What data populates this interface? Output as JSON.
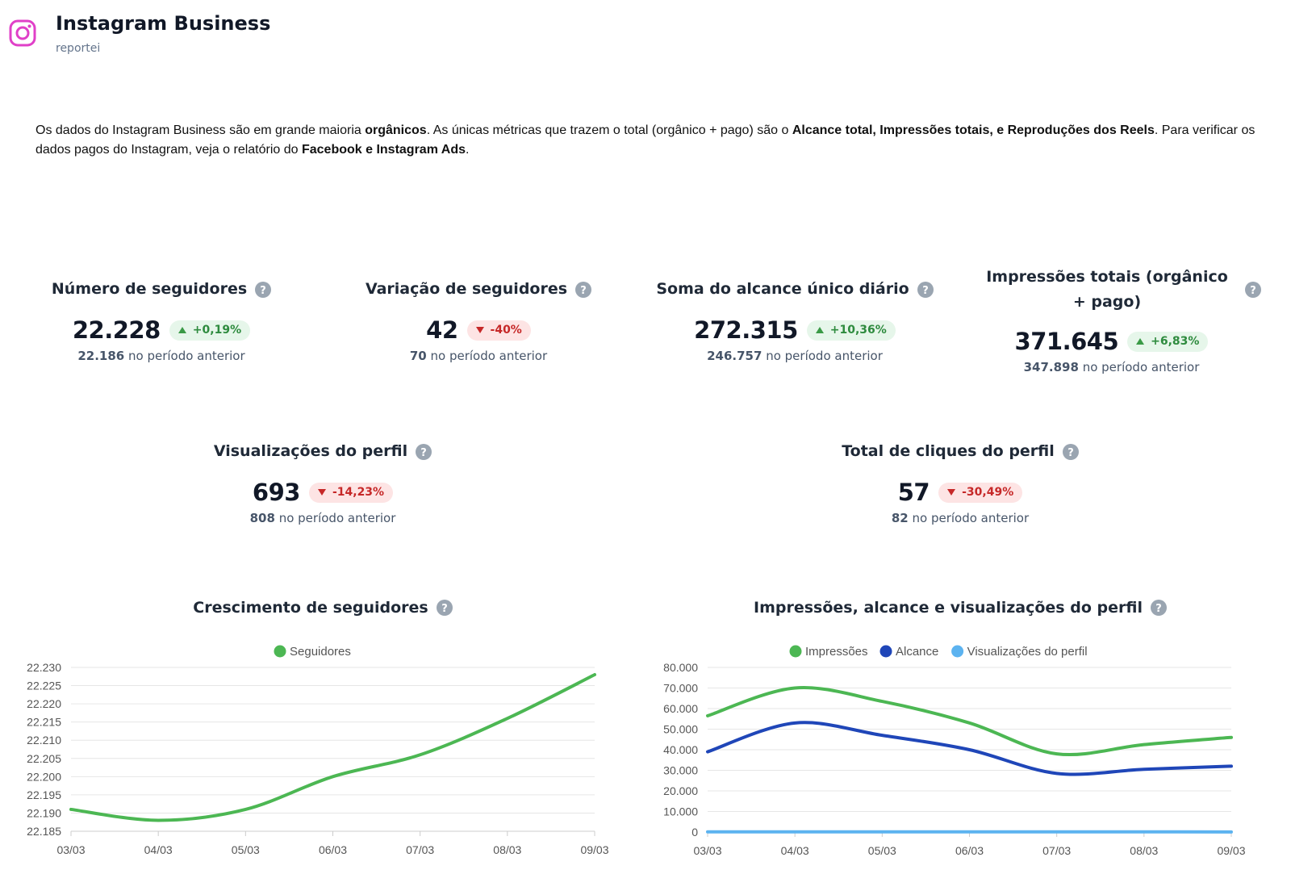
{
  "header": {
    "title": "Instagram Business",
    "subtitle": "reportei",
    "icon": "instagram-icon",
    "icon_color": "#e040c8"
  },
  "intro": {
    "p1": "Os dados do Instagram Business são em grande maioria ",
    "b1": "orgânicos",
    "p2": ". As únicas métricas que trazem o total (orgânico + pago) são o ",
    "b2": "Alcance total, Impressões totais, e Reproduções dos Reels",
    "p3": ". Para verificar os dados pagos do Instagram, veja o relatório do ",
    "b3": "Facebook e Instagram Ads",
    "p4": "."
  },
  "prev_suffix": " no período anterior",
  "metrics": [
    {
      "title": "Número de seguidores",
      "value": "22.228",
      "change": "+0,19%",
      "direction": "up",
      "previous": "22.186"
    },
    {
      "title": "Variação de seguidores",
      "value": "42",
      "change": "-40%",
      "direction": "down",
      "previous": "70"
    },
    {
      "title": "Soma do alcance único diário",
      "value": "272.315",
      "change": "+10,36%",
      "direction": "up",
      "previous": "246.757"
    },
    {
      "title": "Impressões totais (orgânico + pago)",
      "value": "371.645",
      "change": "+6,83%",
      "direction": "up",
      "previous": "347.898"
    },
    {
      "title": "Visualizações do perfil",
      "value": "693",
      "change": "-14,23%",
      "direction": "down",
      "previous": "808"
    },
    {
      "title": "Total de cliques do perfil",
      "value": "57",
      "change": "-30,49%",
      "direction": "down",
      "previous": "82"
    }
  ],
  "colors": {
    "green": "#4cb753",
    "blue": "#1f46b8",
    "light_blue": "#5cb3f0",
    "up_badge_bg": "#e6f6ea",
    "down_badge_bg": "#fde4e4",
    "help_icon": "#9aa5b1"
  },
  "chart_data": [
    {
      "type": "line",
      "title": "Crescimento de seguidores",
      "x": [
        "03/03",
        "04/03",
        "05/03",
        "06/03",
        "07/03",
        "08/03",
        "09/03"
      ],
      "series": [
        {
          "name": "Seguidores",
          "color": "#4cb753",
          "values": [
            22191,
            22188,
            22191,
            22200,
            22206,
            22216,
            22228
          ]
        }
      ],
      "y_ticks": [
        "22.185",
        "22.190",
        "22.195",
        "22.200",
        "22.205",
        "22.210",
        "22.215",
        "22.220",
        "22.225",
        "22.230"
      ],
      "ylim": [
        22185,
        22230
      ],
      "legend": "top-center",
      "grid": true
    },
    {
      "type": "line",
      "title": "Impressões, alcance e visualizações do perfil",
      "x": [
        "03/03",
        "04/03",
        "05/03",
        "06/03",
        "07/03",
        "08/03",
        "09/03"
      ],
      "series": [
        {
          "name": "Impressões",
          "color": "#4cb753",
          "values": [
            56500,
            70000,
            63500,
            53000,
            38000,
            42500,
            46000
          ]
        },
        {
          "name": "Alcance",
          "color": "#1f46b8",
          "values": [
            39000,
            53000,
            47000,
            40000,
            28500,
            30500,
            32000
          ]
        },
        {
          "name": "Visualizações do perfil",
          "color": "#5cb3f0",
          "values": [
            120,
            110,
            100,
            105,
            90,
            95,
            73
          ]
        }
      ],
      "y_ticks": [
        "0",
        "10.000",
        "20.000",
        "30.000",
        "40.000",
        "50.000",
        "60.000",
        "70.000",
        "80.000"
      ],
      "ylim": [
        0,
        80000
      ],
      "legend": "top-center",
      "grid": true
    }
  ]
}
